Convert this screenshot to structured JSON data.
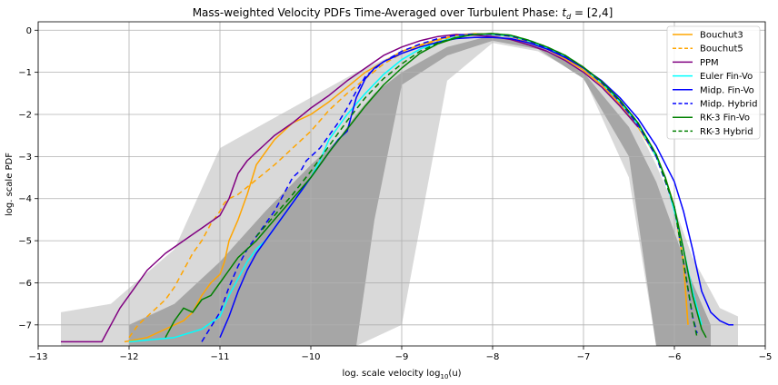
{
  "chart_data": {
    "type": "line",
    "title": "Mass-weighted Velocity PDFs Time-Averaged over Turbulent Phase: t_d = [2,4]",
    "title_prefix": "Mass-weighted Velocity PDFs Time-Averaged over Turbulent Phase: ",
    "title_math_var": "t",
    "title_math_sub": "d",
    "title_suffix": " = [2,4]",
    "xlabel": "log. scale velocity log₁₀(u)",
    "xlabel_prefix": "log. scale velocity log",
    "xlabel_sub": "10",
    "xlabel_suffix": "(u)",
    "ylabel": "log. scale PDF",
    "xlim": [
      -13,
      -5
    ],
    "ylim": [
      -7.5,
      0.2
    ],
    "xticks": [
      -13,
      -12,
      -11,
      -10,
      -9,
      -8,
      -7,
      -6,
      -5
    ],
    "xtick_labels": [
      "−13",
      "−12",
      "−11",
      "−10",
      "−9",
      "−8",
      "−7",
      "−6",
      "−5"
    ],
    "yticks": [
      0,
      -1,
      -2,
      -3,
      -4,
      -5,
      -6,
      -7
    ],
    "ytick_labels": [
      "0",
      "−1",
      "−2",
      "−3",
      "−4",
      "−5",
      "−6",
      "−7"
    ],
    "grid": true,
    "legend_position": "top-right",
    "background_bands": [
      {
        "color": "#d9d9d9",
        "x": [
          -12.75,
          -12.2,
          -11.5,
          -11.0,
          -10.5,
          -10.0,
          -9.5,
          -9.0,
          -8.5,
          -8.0,
          -7.5,
          -7.0,
          -6.5,
          -6.2,
          -6.0,
          -5.8,
          -5.5,
          -5.3
        ],
        "upper": [
          -6.7,
          -6.5,
          -5.2,
          -2.8,
          -2.2,
          -1.6,
          -1.0,
          -0.5,
          -0.15,
          -0.05,
          -0.3,
          -0.85,
          -1.9,
          -3.2,
          -4.2,
          -5.4,
          -6.6,
          -6.8
        ],
        "lower": [
          -7.5,
          -7.5,
          -7.5,
          -7.5,
          -7.5,
          -7.5,
          -7.5,
          -7.0,
          -1.2,
          -0.3,
          -0.5,
          -1.1,
          -3.5,
          -7.5,
          -7.5,
          -7.5,
          -7.5,
          -7.5
        ]
      },
      {
        "color": "#a6a6a6",
        "x": [
          -12.0,
          -11.5,
          -11.0,
          -10.5,
          -10.0,
          -9.7,
          -9.5,
          -9.3,
          -9.0,
          -8.5,
          -8.0,
          -7.5,
          -7.0,
          -6.5,
          -6.2,
          -6.0,
          -5.8,
          -5.6
        ],
        "upper": [
          -7.0,
          -6.5,
          -5.5,
          -4.3,
          -3.2,
          -2.6,
          -2.0,
          -1.5,
          -1.0,
          -0.4,
          -0.12,
          -0.35,
          -1.0,
          -2.3,
          -3.6,
          -4.8,
          -6.0,
          -7.0
        ],
        "lower": [
          -7.5,
          -7.5,
          -7.5,
          -7.5,
          -7.5,
          -7.5,
          -7.5,
          -4.5,
          -1.3,
          -0.6,
          -0.25,
          -0.45,
          -1.15,
          -3.0,
          -7.5,
          -7.5,
          -7.5,
          -7.5
        ]
      }
    ],
    "series": [
      {
        "name": "Bouchut3",
        "color": "#ffa500",
        "dash": "solid",
        "x": [
          -12.05,
          -11.8,
          -11.6,
          -11.4,
          -11.3,
          -11.2,
          -11.1,
          -11.0,
          -10.95,
          -10.9,
          -10.8,
          -10.7,
          -10.6,
          -10.5,
          -10.4,
          -10.3,
          -10.2,
          -10.0,
          -9.8,
          -9.6,
          -9.4,
          -9.2,
          -9.0,
          -8.8,
          -8.6,
          -8.4,
          -8.2,
          -8.0,
          -7.8,
          -7.6,
          -7.4,
          -7.2,
          -7.0,
          -6.8,
          -6.6,
          -6.4,
          -6.2,
          -6.1,
          -6.0,
          -5.9,
          -5.85
        ],
        "y": [
          -7.4,
          -7.3,
          -7.1,
          -6.9,
          -6.7,
          -6.3,
          -6.0,
          -5.8,
          -5.5,
          -5.0,
          -4.5,
          -3.9,
          -3.2,
          -2.9,
          -2.6,
          -2.4,
          -2.2,
          -2.0,
          -1.7,
          -1.35,
          -1.0,
          -0.75,
          -0.5,
          -0.35,
          -0.22,
          -0.12,
          -0.08,
          -0.1,
          -0.15,
          -0.28,
          -0.45,
          -0.68,
          -0.95,
          -1.3,
          -1.75,
          -2.3,
          -3.0,
          -3.5,
          -4.2,
          -5.5,
          -7.0
        ]
      },
      {
        "name": "Bouchut5",
        "color": "#ffa500",
        "dash": "6,4",
        "x": [
          -12.0,
          -11.9,
          -11.8,
          -11.7,
          -11.6,
          -11.5,
          -11.4,
          -11.3,
          -11.2,
          -11.1,
          -11.0,
          -10.95,
          -10.9,
          -10.8,
          -10.6,
          -10.4,
          -10.2,
          -10.0,
          -9.8,
          -9.6,
          -9.4,
          -9.2,
          -9.0,
          -8.8,
          -8.6,
          -8.4,
          -8.2,
          -8.0,
          -7.8,
          -7.6,
          -7.4,
          -7.2,
          -7.0,
          -6.8,
          -6.6,
          -6.4,
          -6.2,
          -6.1,
          -6.0,
          -5.9,
          -5.85
        ],
        "y": [
          -7.3,
          -7.0,
          -6.8,
          -6.6,
          -6.4,
          -6.1,
          -5.7,
          -5.3,
          -5.0,
          -4.6,
          -4.3,
          -4.1,
          -4.0,
          -3.9,
          -3.55,
          -3.2,
          -2.8,
          -2.4,
          -1.9,
          -1.5,
          -1.15,
          -0.8,
          -0.55,
          -0.38,
          -0.24,
          -0.14,
          -0.09,
          -0.1,
          -0.15,
          -0.28,
          -0.45,
          -0.68,
          -0.95,
          -1.3,
          -1.75,
          -2.3,
          -3.0,
          -3.5,
          -4.2,
          -5.5,
          -7.0
        ]
      },
      {
        "name": "PPM",
        "color": "#800080",
        "dash": "solid",
        "x": [
          -12.75,
          -12.3,
          -12.2,
          -12.1,
          -12.0,
          -11.8,
          -11.6,
          -11.4,
          -11.2,
          -11.0,
          -10.9,
          -10.8,
          -10.7,
          -10.6,
          -10.5,
          -10.4,
          -10.2,
          -10.0,
          -9.8,
          -9.6,
          -9.4,
          -9.2,
          -9.0,
          -8.8,
          -8.6,
          -8.4,
          -8.2,
          -8.0,
          -7.8,
          -7.6,
          -7.4,
          -7.2,
          -7.0,
          -6.8,
          -6.6,
          -6.4
        ],
        "y": [
          -7.4,
          -7.4,
          -7.0,
          -6.6,
          -6.3,
          -5.7,
          -5.3,
          -5.0,
          -4.7,
          -4.4,
          -4.0,
          -3.4,
          -3.1,
          -2.9,
          -2.7,
          -2.5,
          -2.2,
          -1.85,
          -1.55,
          -1.2,
          -0.9,
          -0.6,
          -0.4,
          -0.25,
          -0.15,
          -0.1,
          -0.12,
          -0.15,
          -0.22,
          -0.35,
          -0.5,
          -0.72,
          -1.0,
          -1.35,
          -1.8,
          -2.3
        ]
      },
      {
        "name": "Euler Fin-Vo",
        "color": "#00ffff",
        "dash": "solid",
        "x": [
          -12.0,
          -11.5,
          -11.2,
          -11.0,
          -10.9,
          -10.8,
          -10.7,
          -10.6,
          -10.5,
          -10.4,
          -10.3,
          -10.2,
          -10.1,
          -10.0,
          -9.9,
          -9.8,
          -9.6,
          -9.4,
          -9.2,
          -9.0,
          -8.8,
          -8.6,
          -8.4,
          -8.2,
          -8.0,
          -7.8,
          -7.6,
          -7.4,
          -7.2,
          -7.0,
          -6.8,
          -6.6,
          -6.4,
          -6.2,
          -6.1,
          -6.0,
          -5.9,
          -5.8,
          -5.7
        ],
        "y": [
          -7.4,
          -7.3,
          -7.1,
          -6.8,
          -6.3,
          -5.9,
          -5.5,
          -5.2,
          -5.0,
          -4.7,
          -4.4,
          -4.1,
          -3.8,
          -3.5,
          -3.1,
          -2.6,
          -2.0,
          -1.5,
          -1.05,
          -0.7,
          -0.45,
          -0.28,
          -0.16,
          -0.1,
          -0.1,
          -0.14,
          -0.26,
          -0.42,
          -0.64,
          -0.9,
          -1.25,
          -1.7,
          -2.25,
          -3.0,
          -3.5,
          -4.3,
          -5.2,
          -6.2,
          -7.0
        ]
      },
      {
        "name": "Midp. Fin-Vo",
        "color": "#0000ff",
        "dash": "solid",
        "x": [
          -11.0,
          -10.9,
          -10.8,
          -10.7,
          -10.6,
          -10.5,
          -10.4,
          -10.3,
          -10.2,
          -10.1,
          -10.0,
          -9.9,
          -9.8,
          -9.7,
          -9.6,
          -9.5,
          -9.4,
          -9.3,
          -9.2,
          -9.0,
          -8.8,
          -8.6,
          -8.4,
          -8.2,
          -8.0,
          -7.8,
          -7.6,
          -7.4,
          -7.2,
          -7.0,
          -6.8,
          -6.6,
          -6.4,
          -6.2,
          -6.0,
          -5.9,
          -5.8,
          -5.7,
          -5.6,
          -5.5,
          -5.4,
          -5.35
        ],
        "y": [
          -7.3,
          -6.8,
          -6.2,
          -5.7,
          -5.3,
          -5.0,
          -4.7,
          -4.4,
          -4.1,
          -3.8,
          -3.5,
          -3.2,
          -2.9,
          -2.6,
          -2.4,
          -1.6,
          -1.15,
          -0.9,
          -0.75,
          -0.55,
          -0.4,
          -0.28,
          -0.2,
          -0.17,
          -0.17,
          -0.2,
          -0.3,
          -0.45,
          -0.65,
          -0.9,
          -1.2,
          -1.6,
          -2.1,
          -2.75,
          -3.6,
          -4.3,
          -5.2,
          -6.2,
          -6.7,
          -6.9,
          -7.0,
          -7.0
        ]
      },
      {
        "name": "Midp. Hybrid",
        "color": "#0000ff",
        "dash": "6,4",
        "x": [
          -11.2,
          -11.0,
          -10.9,
          -10.8,
          -10.7,
          -10.6,
          -10.5,
          -10.4,
          -10.3,
          -10.2,
          -10.1,
          -10.05,
          -10.0,
          -9.9,
          -9.8,
          -9.7,
          -9.6,
          -9.5,
          -9.4,
          -9.2,
          -9.0,
          -8.8,
          -8.6,
          -8.4,
          -8.2,
          -8.0,
          -7.8,
          -7.6,
          -7.4,
          -7.2,
          -7.0,
          -6.8,
          -6.6,
          -6.4,
          -6.2,
          -6.0,
          -5.9,
          -5.8,
          -5.75
        ],
        "y": [
          -7.4,
          -6.7,
          -6.1,
          -5.6,
          -5.2,
          -4.9,
          -4.6,
          -4.3,
          -3.9,
          -3.5,
          -3.3,
          -3.1,
          -3.0,
          -2.8,
          -2.5,
          -2.2,
          -1.85,
          -1.45,
          -1.1,
          -0.75,
          -0.5,
          -0.33,
          -0.2,
          -0.12,
          -0.09,
          -0.1,
          -0.14,
          -0.26,
          -0.42,
          -0.64,
          -0.9,
          -1.25,
          -1.7,
          -2.25,
          -3.0,
          -4.2,
          -5.5,
          -6.8,
          -7.2
        ]
      },
      {
        "name": "RK-3  Fin-Vo",
        "color": "#008000",
        "dash": "solid",
        "x": [
          -11.6,
          -11.5,
          -11.4,
          -11.3,
          -11.2,
          -11.1,
          -11.0,
          -10.9,
          -10.8,
          -10.6,
          -10.4,
          -10.2,
          -10.0,
          -9.8,
          -9.6,
          -9.4,
          -9.2,
          -9.0,
          -8.8,
          -8.6,
          -8.4,
          -8.2,
          -8.0,
          -7.8,
          -7.6,
          -7.4,
          -7.2,
          -7.0,
          -6.8,
          -6.6,
          -6.4,
          -6.2,
          -6.1,
          -6.0,
          -5.9,
          -5.8,
          -5.7,
          -5.65
        ],
        "y": [
          -7.3,
          -6.9,
          -6.6,
          -6.7,
          -6.4,
          -6.3,
          -6.0,
          -5.7,
          -5.4,
          -5.0,
          -4.5,
          -4.0,
          -3.5,
          -2.9,
          -2.35,
          -1.8,
          -1.3,
          -0.9,
          -0.55,
          -0.32,
          -0.18,
          -0.1,
          -0.08,
          -0.12,
          -0.24,
          -0.4,
          -0.6,
          -0.88,
          -1.22,
          -1.66,
          -2.2,
          -2.95,
          -3.5,
          -4.2,
          -5.2,
          -6.3,
          -7.1,
          -7.3
        ]
      },
      {
        "name": "RK-3  Hybrid",
        "color": "#008000",
        "dash": "6,4",
        "x": [
          -10.6,
          -10.4,
          -10.2,
          -10.0,
          -9.8,
          -9.6,
          -9.4,
          -9.2,
          -9.0,
          -8.8,
          -8.6,
          -8.4,
          -8.2,
          -8.0,
          -7.8,
          -7.6,
          -7.4,
          -7.2,
          -7.0,
          -6.8,
          -6.6,
          -6.4,
          -6.2,
          -6.0,
          -5.9,
          -5.8,
          -5.75
        ],
        "y": [
          -4.9,
          -4.4,
          -3.9,
          -3.35,
          -2.75,
          -2.15,
          -1.6,
          -1.15,
          -0.8,
          -0.5,
          -0.3,
          -0.17,
          -0.1,
          -0.08,
          -0.12,
          -0.24,
          -0.4,
          -0.6,
          -0.88,
          -1.22,
          -1.66,
          -2.2,
          -2.95,
          -4.2,
          -5.5,
          -6.8,
          -7.3
        ]
      }
    ]
  }
}
